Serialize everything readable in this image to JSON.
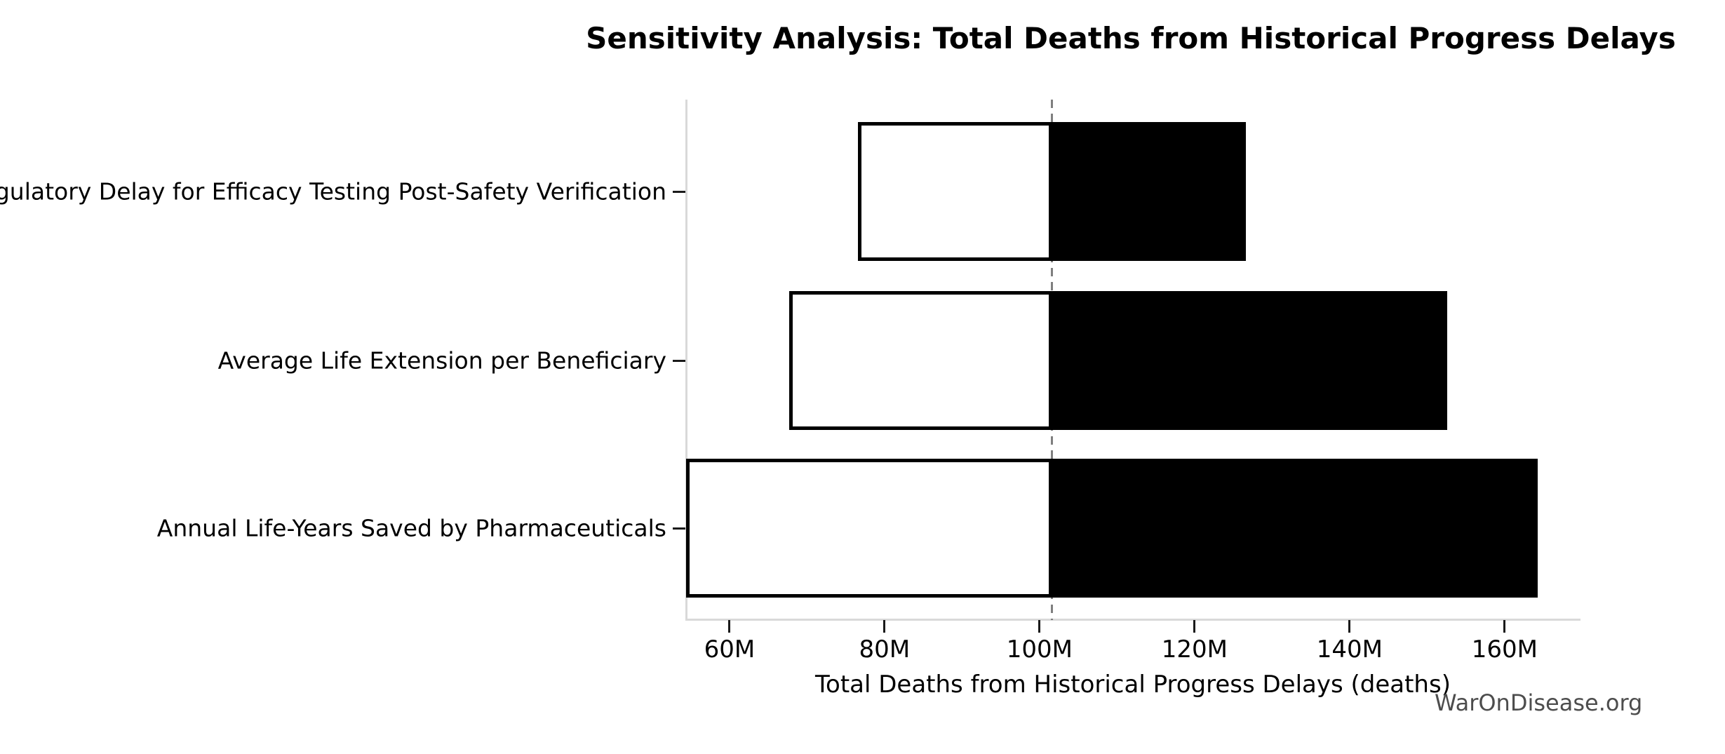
{
  "header": {
    "title": "Sensitivity Analysis: Total Deaths from Historical Progress Delays"
  },
  "footer": {
    "watermark": "WarOnDisease.org"
  },
  "chart_data": {
    "type": "bar",
    "subtype": "tornado-sensitivity",
    "orientation": "horizontal",
    "title": "Sensitivity Analysis: Total Deaths from Historical Progress Delays",
    "xlabel": "Total Deaths from Historical Progress Delays (deaths)",
    "ylabel": "",
    "unit": "millions of deaths",
    "categories": [
      "Regulatory Delay for Efficacy Testing Post-Safety Verification",
      "Average Life Extension per Beneficiary",
      "Annual Life-Years Saved by Pharmaceuticals"
    ],
    "baseline_value": 101.6,
    "series": [
      {
        "name": "low_estimate",
        "values": [
          76.6,
          67.7,
          54.4
        ]
      },
      {
        "name": "high_estimate",
        "values": [
          126.6,
          152.6,
          164.3
        ]
      }
    ],
    "xticks": {
      "values": [
        60,
        80,
        100,
        120,
        140,
        160
      ],
      "labels": [
        "60M",
        "80M",
        "100M",
        "120M",
        "140M",
        "160M"
      ]
    },
    "xlim": [
      54.4,
      169.7
    ],
    "grid": false,
    "legend": "none",
    "styles": {
      "low_fill": "#ffffff",
      "high_fill": "#000000",
      "bar_edge": "#000000",
      "baseline_color": "#7f7f7f",
      "spine_color": "#d9d9d9",
      "tick_color": "#1a1a1a",
      "text_color": "#000000",
      "watermark_color": "#4d4d4d"
    }
  }
}
